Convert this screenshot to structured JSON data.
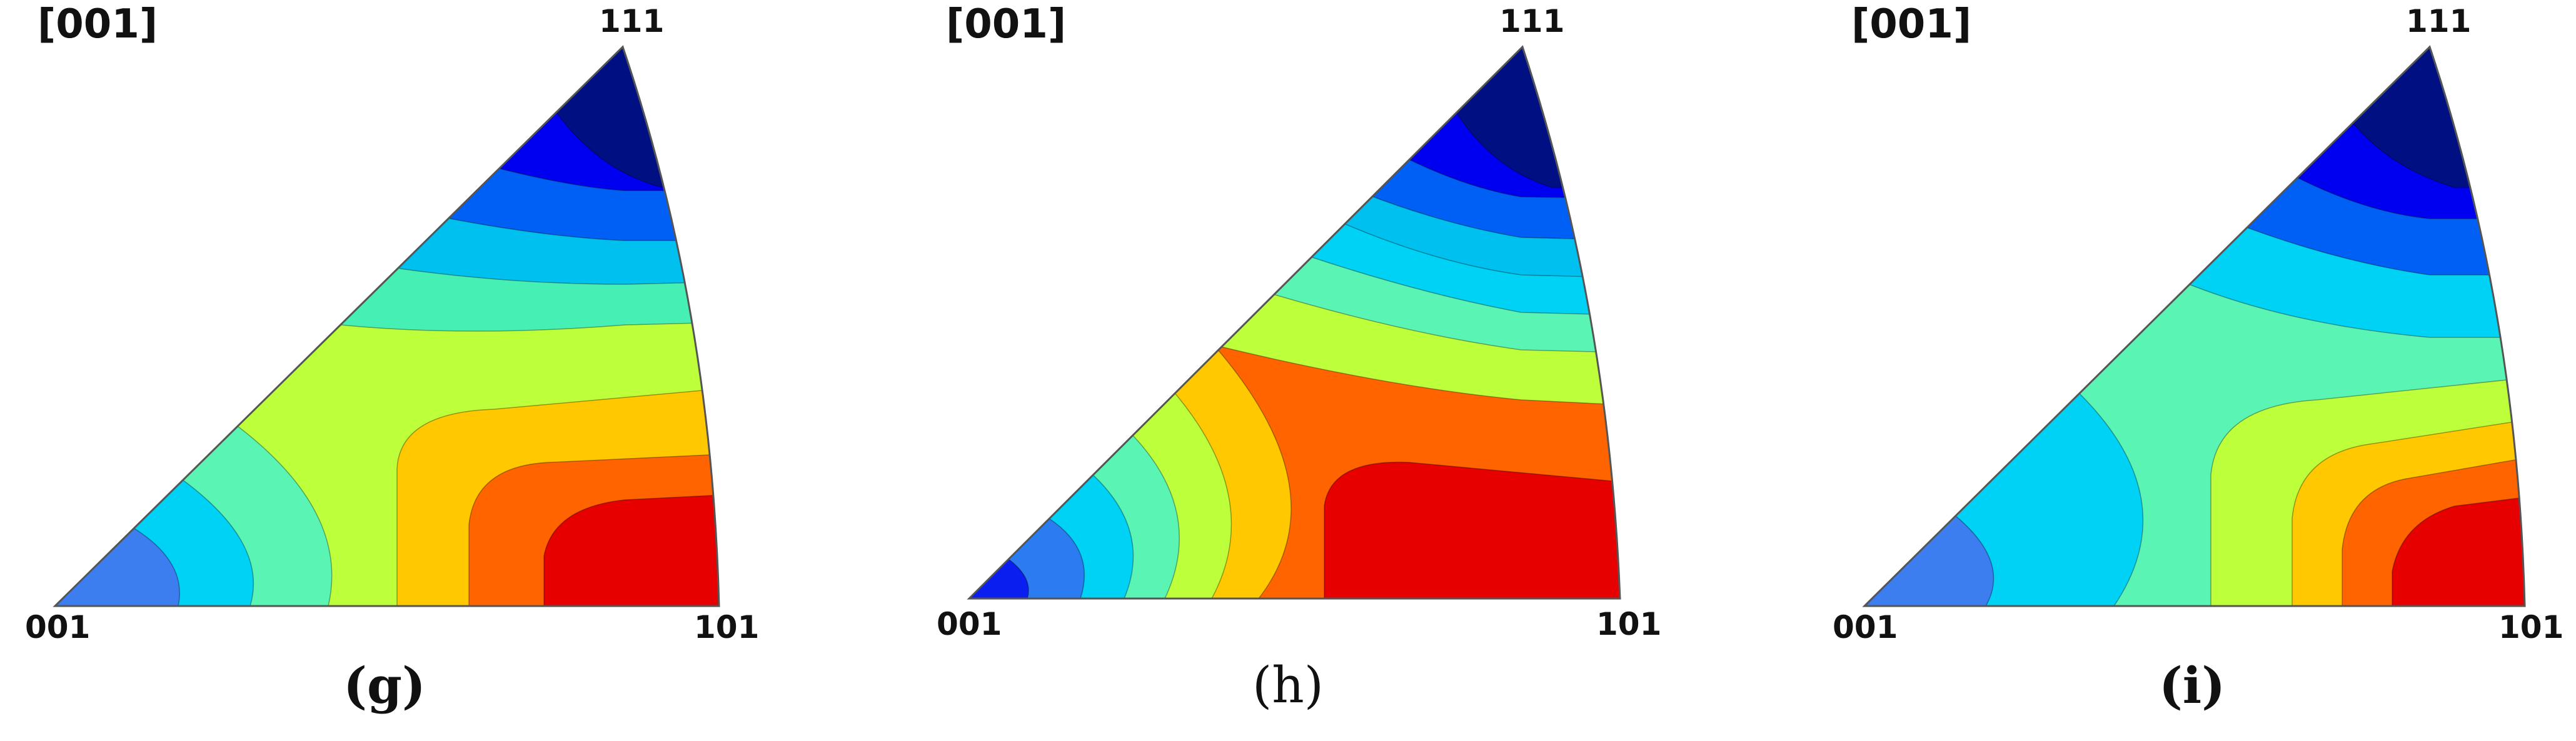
{
  "panels": [
    {
      "direction_label": "[001]",
      "vertex_labels": {
        "v111": "111",
        "v001": "001",
        "v101": "101"
      },
      "caption": "(g)",
      "caption_bold": true,
      "colors": [
        "#3c7df0",
        "#00d2f5",
        "#5af5b4",
        "#beff3c",
        "#ffc800",
        "#ff6400",
        "#e60000",
        "#001082",
        "#0000f0",
        "#005ff5",
        "#00c0f0",
        "#46f0b4"
      ]
    },
    {
      "direction_label": "[001]",
      "vertex_labels": {
        "v111": "111",
        "v001": "001",
        "v101": "101"
      },
      "caption": "(h)",
      "caption_bold": false,
      "colors": [
        "#0a1ef0",
        "#2a7cf0",
        "#00d2f5",
        "#5af5b4",
        "#beff3c",
        "#ffc800",
        "#ff6400",
        "#e60000",
        "#001082",
        "#0000f0",
        "#005ff5",
        "#00c0f0"
      ]
    },
    {
      "direction_label": "[001]",
      "vertex_labels": {
        "v111": "111",
        "v001": "001",
        "v101": "101"
      },
      "caption": "(i)",
      "caption_bold": true,
      "colors": [
        "#3c7df0",
        "#00d2f5",
        "#5af5b4",
        "#beff3c",
        "#ffc800",
        "#ff6400",
        "#e60000",
        "#001082",
        "#0000f0",
        "#005ff5",
        "#00c0f0"
      ]
    }
  ]
}
